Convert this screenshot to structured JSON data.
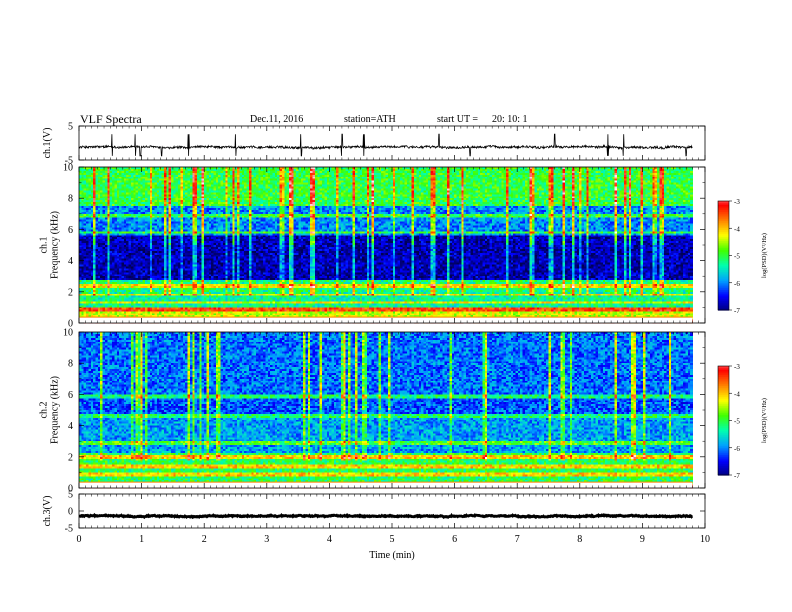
{
  "header": {
    "title": "VLF  Spectra",
    "date": "Dec.11, 2016",
    "station": "station=ATH",
    "start_label": "start  UT  =",
    "start_value": "20: 10: 1"
  },
  "chart_data": [
    {
      "type": "line",
      "panel": "ch1-waveform",
      "ylabel": "ch.1(V)",
      "ylim": [
        -5,
        5
      ],
      "yticks": [
        "5",
        "-5"
      ],
      "x_range_min": [
        0,
        10
      ],
      "data_end_min": 9.8,
      "baseline_v": -1.2,
      "noise_amplitude_v": 0.6,
      "spike_times_min": [
        0.53,
        0.9,
        0.98,
        1.32,
        1.75,
        2.5,
        3.55,
        4.2,
        4.55,
        5.75,
        6.25,
        7.6,
        8.45,
        8.7,
        9.7
      ],
      "line_color": "#000000"
    },
    {
      "type": "heatmap",
      "panel": "ch1-spectrogram",
      "ylabel": "ch.1\nFrequency  (kHz)",
      "yticks": [
        "0",
        "2",
        "4",
        "6",
        "8",
        "10"
      ],
      "ylim": [
        0,
        10
      ],
      "x_range_min": [
        0,
        10
      ],
      "data_end_min": 9.8,
      "colorbar": {
        "label": "log(PSD)(V²/Hz)",
        "ticks": [
          "-3",
          "-4",
          "-5",
          "-6",
          "-7"
        ],
        "range": [
          -7,
          -3
        ]
      },
      "description_bands": [
        {
          "f_khz": [
            0.0,
            0.3
          ],
          "level": -3.2
        },
        {
          "f_khz": [
            0.3,
            1.0
          ],
          "level": -4.4
        },
        {
          "f_khz": [
            1.0,
            2.0
          ],
          "level": -5.3
        },
        {
          "f_khz": [
            2.0,
            2.8
          ],
          "level": -5.2
        },
        {
          "f_khz": [
            2.8,
            5.6
          ],
          "level": -6.8
        },
        {
          "f_khz": [
            5.6,
            7.5
          ],
          "level": -6.0
        },
        {
          "f_khz": [
            7.5,
            10.0
          ],
          "level": -5.0
        }
      ],
      "line_features_khz": [
        0.9,
        1.3,
        1.8,
        2.4,
        5.8,
        6.9
      ]
    },
    {
      "type": "heatmap",
      "panel": "ch2-spectrogram",
      "ylabel": "ch.2\nFrequency  (kHz)",
      "yticks": [
        "0",
        "2",
        "4",
        "6",
        "8",
        "10"
      ],
      "ylim": [
        0,
        10
      ],
      "x_range_min": [
        0,
        10
      ],
      "data_end_min": 9.8,
      "colorbar": {
        "label": "log(PSD)(V²/Hz)",
        "ticks": [
          "-3",
          "-4",
          "-5",
          "-6",
          "-7"
        ],
        "range": [
          -7,
          -3
        ]
      },
      "description_bands": [
        {
          "f_khz": [
            0.0,
            0.3
          ],
          "level": -3.2
        },
        {
          "f_khz": [
            0.3,
            2.2
          ],
          "level": -5.1
        },
        {
          "f_khz": [
            2.2,
            4.5
          ],
          "level": -5.9
        },
        {
          "f_khz": [
            4.5,
            6.0
          ],
          "level": -6.2
        },
        {
          "f_khz": [
            6.0,
            10.0
          ],
          "level": -6.1
        }
      ],
      "line_features_khz": [
        0.9,
        1.4,
        2.0,
        2.9,
        4.6,
        5.9
      ]
    },
    {
      "type": "line",
      "panel": "ch3-waveform",
      "ylabel": "ch.3(V)",
      "ylim": [
        -5,
        5
      ],
      "yticks": [
        "5",
        "0",
        "-5"
      ],
      "x_range_min": [
        0,
        10
      ],
      "data_end_min": 9.8,
      "baseline_v": -1.5,
      "noise_amplitude_v": 0.2,
      "line_color": "#000000"
    }
  ],
  "xaxis": {
    "label": "Time  (min)",
    "ticks": [
      "0",
      "1",
      "2",
      "3",
      "4",
      "5",
      "6",
      "7",
      "8",
      "9",
      "10"
    ]
  },
  "colors": {
    "colormap": [
      "#000000",
      "#00007a",
      "#0000ff",
      "#00a0ff",
      "#00ffb0",
      "#40ff00",
      "#ffff00",
      "#ff8000",
      "#ff0000",
      "#ffffff"
    ]
  }
}
